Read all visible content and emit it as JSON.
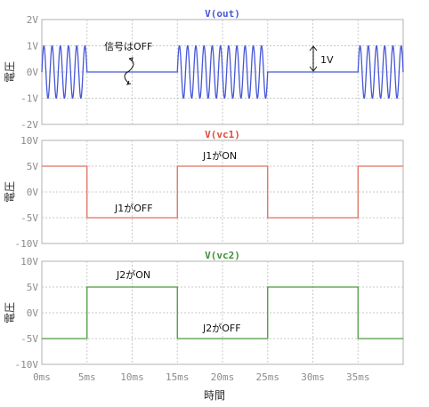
{
  "chart_data": [
    {
      "type": "line",
      "title": "V(out)",
      "ylabel": "電圧",
      "ylim": [
        -2,
        2
      ],
      "yticks": [
        2,
        1,
        0,
        -1,
        -2
      ],
      "ytick_labels": [
        "2V",
        "1V",
        "0V",
        "-1V",
        "-2V"
      ],
      "xlim": [
        0,
        40
      ],
      "grid": true,
      "series": [
        {
          "color": "#4657d6",
          "description": "1V sinusoid (~5 cycles per 5ms burst) during 0–5, 15–25, 35–40 ms; 0V during 5–15 and 25–35 ms",
          "amplitude": 1,
          "on_intervals": [
            [
              0,
              5
            ],
            [
              15,
              25
            ],
            [
              35,
              40
            ]
          ],
          "cycles_per_ms": 1.1
        }
      ],
      "annotations": [
        {
          "text": "信号はOFF"
        },
        {
          "text": "1V"
        }
      ]
    },
    {
      "type": "line",
      "title": "V(vc1)",
      "ylabel": "電圧",
      "ylim": [
        -10,
        10
      ],
      "yticks": [
        10,
        5,
        0,
        -5,
        -10
      ],
      "ytick_labels": [
        "10V",
        "5V",
        "0V",
        "-5V",
        "-10V"
      ],
      "xlim": [
        0,
        40
      ],
      "grid": true,
      "series": [
        {
          "color": "#e07060",
          "x": [
            0,
            5,
            5,
            15,
            15,
            25,
            25,
            35,
            35,
            40
          ],
          "y": [
            5,
            5,
            -5,
            -5,
            5,
            5,
            -5,
            -5,
            5,
            5
          ]
        }
      ],
      "annotations": [
        {
          "text": "J1がON"
        },
        {
          "text": "J1がOFF"
        }
      ]
    },
    {
      "type": "line",
      "title": "V(vc2)",
      "ylabel": "電圧",
      "ylim": [
        -10,
        10
      ],
      "yticks": [
        10,
        5,
        0,
        -5,
        -10
      ],
      "ytick_labels": [
        "10V",
        "5V",
        "0V",
        "-5V",
        "-10V"
      ],
      "xlim": [
        0,
        40
      ],
      "xticks": [
        0,
        5,
        10,
        15,
        20,
        25,
        30,
        35
      ],
      "xtick_labels": [
        "0ms",
        "5ms",
        "10ms",
        "15ms",
        "20ms",
        "25ms",
        "30ms",
        "35ms"
      ],
      "xlabel": "時間",
      "grid": true,
      "series": [
        {
          "color": "#4c9a3c",
          "x": [
            0,
            5,
            5,
            15,
            15,
            25,
            25,
            35,
            35,
            40
          ],
          "y": [
            -5,
            -5,
            5,
            5,
            -5,
            -5,
            5,
            5,
            -5,
            -5
          ]
        }
      ],
      "annotations": [
        {
          "text": "J2がON"
        },
        {
          "text": "J2がOFF"
        }
      ]
    }
  ],
  "colors": {
    "title_out": "#4657d6",
    "title_vc1": "#e04a3c",
    "title_vc2": "#3f8f3a",
    "grid": "#c8c8c8",
    "frame": "#b0b0b0"
  }
}
